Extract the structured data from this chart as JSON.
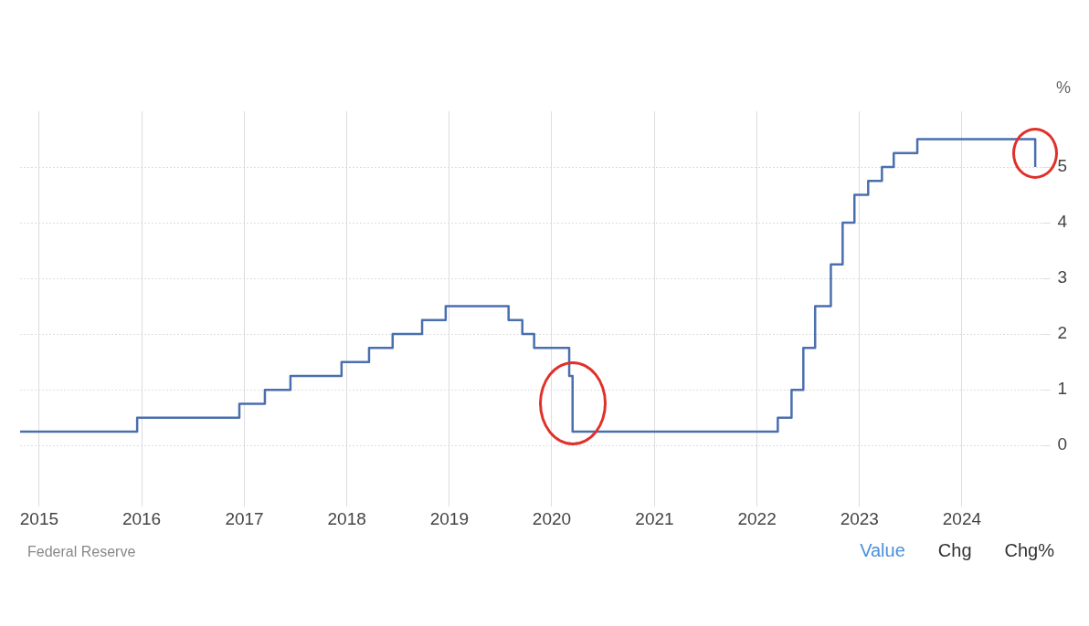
{
  "chart_data": {
    "type": "step",
    "ylabel": "%",
    "x": [
      "2014-10-25",
      "2015-12-16",
      "2016-12-14",
      "2017-03-15",
      "2017-06-14",
      "2017-12-13",
      "2018-03-21",
      "2018-06-13",
      "2018-09-26",
      "2018-12-19",
      "2019-07-31",
      "2019-09-18",
      "2019-10-30",
      "2020-03-03",
      "2020-03-15",
      "2022-03-16",
      "2022-05-04",
      "2022-06-15",
      "2022-07-27",
      "2022-09-21",
      "2022-11-02",
      "2022-12-14",
      "2023-02-01",
      "2023-03-22",
      "2023-05-03",
      "2023-07-26",
      "2024-09-18"
    ],
    "series": [
      {
        "color": "#4a6fae",
        "values": [
          0.25,
          0.5,
          0.75,
          1.0,
          1.25,
          1.5,
          1.75,
          2.0,
          2.25,
          2.5,
          2.25,
          2.0,
          1.75,
          1.25,
          0.25,
          0.5,
          1.0,
          1.75,
          2.5,
          3.25,
          4.0,
          4.5,
          4.75,
          5.0,
          5.25,
          5.5,
          5.0
        ]
      }
    ],
    "xlim": [
      "2014-10-25",
      "2024-10-15"
    ],
    "xticks": [
      {
        "value": "2015-01-01",
        "label": "2015"
      },
      {
        "value": "2016-01-01",
        "label": "2016"
      },
      {
        "value": "2017-01-01",
        "label": "2017"
      },
      {
        "value": "2018-01-01",
        "label": "2018"
      },
      {
        "value": "2019-01-01",
        "label": "2019"
      },
      {
        "value": "2020-01-01",
        "label": "2020"
      },
      {
        "value": "2021-01-01",
        "label": "2021"
      },
      {
        "value": "2022-01-01",
        "label": "2022"
      },
      {
        "value": "2023-01-01",
        "label": "2023"
      },
      {
        "value": "2024-01-01",
        "label": "2024"
      }
    ],
    "ylim": [
      -1,
      6
    ],
    "yticks": [
      0,
      1,
      2,
      3,
      4,
      5
    ],
    "grid": true,
    "legend": false,
    "marker": "none",
    "line_style": "solid",
    "annotations": [
      "Federal Reserve",
      "Value",
      "Chg",
      "Chg%"
    ]
  }
}
